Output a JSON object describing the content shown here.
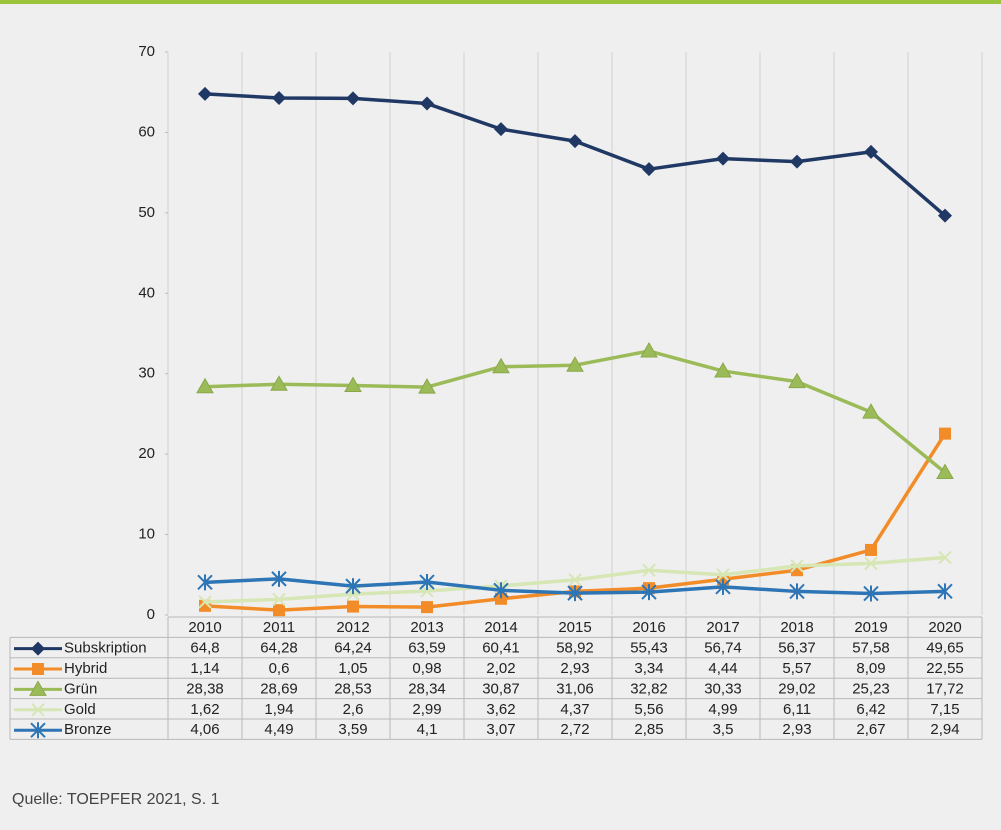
{
  "chart_data": {
    "type": "line",
    "categories": [
      "2010",
      "2011",
      "2012",
      "2013",
      "2014",
      "2015",
      "2016",
      "2017",
      "2018",
      "2019",
      "2020"
    ],
    "ylim": [
      0,
      70
    ],
    "yticks": [
      0,
      10,
      20,
      30,
      40,
      50,
      60,
      70
    ],
    "grid": true,
    "series": [
      {
        "name": "Subskription",
        "color": "#1f3864",
        "marker": "diamond",
        "values": [
          64.8,
          64.28,
          64.24,
          63.59,
          60.41,
          58.92,
          55.43,
          56.74,
          56.37,
          57.58,
          49.65
        ],
        "value_labels": [
          "64,8",
          "64,28",
          "64,24",
          "63,59",
          "60,41",
          "58,92",
          "55,43",
          "56,74",
          "56,37",
          "57,58",
          "49,65"
        ]
      },
      {
        "name": "Hybrid",
        "color": "#f28c28",
        "marker": "square",
        "values": [
          1.14,
          0.6,
          1.05,
          0.98,
          2.02,
          2.93,
          3.34,
          4.44,
          5.57,
          8.09,
          22.55
        ],
        "value_labels": [
          "1,14",
          "0,6",
          "1,05",
          "0,98",
          "2,02",
          "2,93",
          "3,34",
          "4,44",
          "5,57",
          "8,09",
          "22,55"
        ]
      },
      {
        "name": "Grün",
        "color": "#9bbb59",
        "marker": "triangle",
        "values": [
          28.38,
          28.69,
          28.53,
          28.34,
          30.87,
          31.06,
          32.82,
          30.33,
          29.02,
          25.23,
          17.72
        ],
        "value_labels": [
          "28,38",
          "28,69",
          "28,53",
          "28,34",
          "30,87",
          "31,06",
          "32,82",
          "30,33",
          "29,02",
          "25,23",
          "17,72"
        ]
      },
      {
        "name": "Gold",
        "color": "#d6e6b4",
        "marker": "x",
        "values": [
          1.62,
          1.94,
          2.6,
          2.99,
          3.62,
          4.37,
          5.56,
          4.99,
          6.11,
          6.42,
          7.15
        ],
        "value_labels": [
          "1,62",
          "1,94",
          "2,6",
          "2,99",
          "3,62",
          "4,37",
          "5,56",
          "4,99",
          "6,11",
          "6,42",
          "7,15"
        ]
      },
      {
        "name": "Bronze",
        "color": "#2e75b6",
        "marker": "star",
        "values": [
          4.06,
          4.49,
          3.59,
          4.1,
          3.07,
          2.72,
          2.85,
          3.5,
          2.93,
          2.67,
          2.94
        ],
        "value_labels": [
          "4,06",
          "4,49",
          "3,59",
          "4,1",
          "3,07",
          "2,72",
          "2,85",
          "3,5",
          "2,93",
          "2,67",
          "2,94"
        ]
      }
    ]
  },
  "source": "Quelle: TOEPFER 2021, S. 1"
}
